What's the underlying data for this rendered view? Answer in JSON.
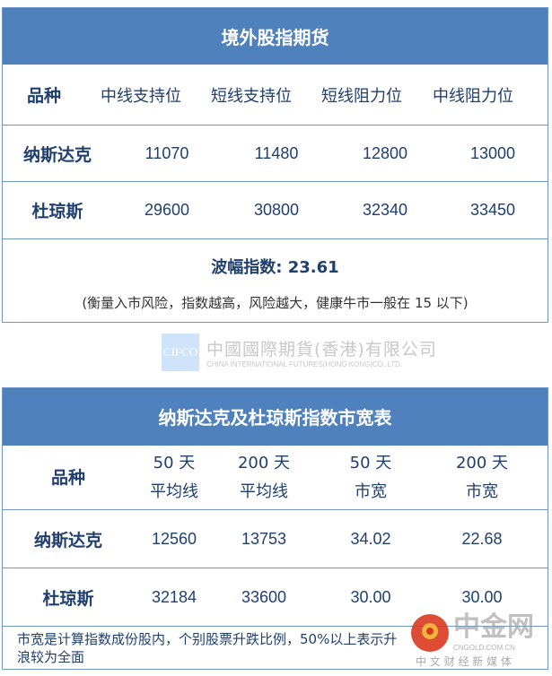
{
  "table1": {
    "title": "境外股指期货",
    "headers": [
      "品种",
      "中线支持位",
      "短线支持位",
      "短线阻力位",
      "中线阻力位"
    ],
    "rows": [
      [
        "纳斯达克",
        "11070",
        "11480",
        "12800",
        "13000"
      ],
      [
        "杜琼斯",
        "29600",
        "30800",
        "32340",
        "33450"
      ]
    ],
    "wave_index": "波幅指数: 23.61",
    "note": "(衡量入市风险，指数越高，风险越大，健康牛市一般在 15 以下)"
  },
  "logo": {
    "box": "CIFCO",
    "cn": "中國國際期貨(香港)有限公司",
    "en": "CHINA INTERNATIONAL FUTURES(HONG KONG)CO.,LTD."
  },
  "table2": {
    "title": "纳斯达克及杜琼斯指数市宽表",
    "headers": [
      [
        "品种",
        ""
      ],
      [
        "50 天",
        "平均线"
      ],
      [
        "200 天",
        "平均线"
      ],
      [
        "50 天",
        "市宽"
      ],
      [
        "200 天",
        "市宽"
      ]
    ],
    "rows": [
      [
        "纳斯达克",
        "12560",
        "13753",
        "34.02",
        "22.68"
      ],
      [
        "杜琼斯",
        "32184",
        "33600",
        "30.00",
        "30.00"
      ]
    ],
    "footer": "市宽是计算指数成份股内，个别股票升跌比例，50%以上表示升浪较为全面"
  },
  "watermark": {
    "name": "中金网",
    "domain": "CNGOLD.COM.CN",
    "tagline": "中 文 财 经 新 媒 体"
  }
}
